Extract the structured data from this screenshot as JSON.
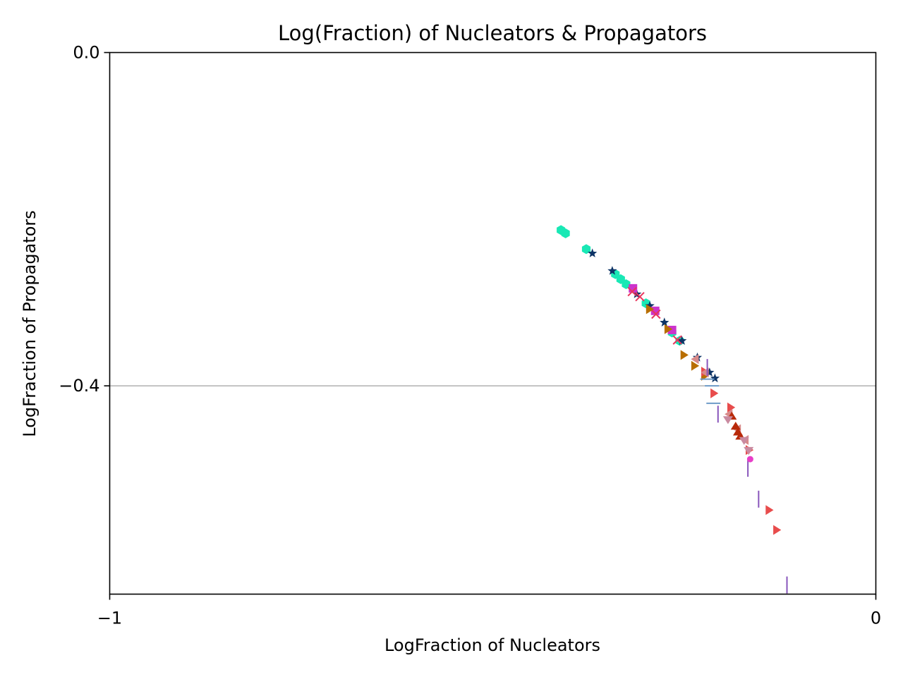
{
  "chart_data": {
    "type": "scatter",
    "title": "Log(Fraction) of Nucleators & Propagators",
    "xlabel": "LogFraction of Nucleators",
    "ylabel": "LogFraction of Propagators",
    "xlim": [
      -1,
      0
    ],
    "ylim": [
      -0.65,
      0.0
    ],
    "x_ticks": [
      {
        "value": -1,
        "label": "−1"
      },
      {
        "value": 0,
        "label": "0"
      }
    ],
    "y_ticks": [
      {
        "value": 0.0,
        "label": "0.0"
      },
      {
        "value": -0.4,
        "label": "−0.4"
      }
    ],
    "grid": {
      "horizontal_lines_at": [
        -0.4
      ],
      "color": "#b0b0b0"
    },
    "series": [
      {
        "marker": "hexagon",
        "color": "#19e8b5",
        "points": [
          [
            -0.411,
            -0.213
          ],
          [
            -0.405,
            -0.217
          ],
          [
            -0.378,
            -0.236
          ],
          [
            -0.34,
            -0.266
          ],
          [
            -0.333,
            -0.272
          ],
          [
            -0.326,
            -0.278
          ],
          [
            -0.3,
            -0.301
          ],
          [
            -0.266,
            -0.336
          ],
          [
            -0.256,
            -0.346
          ]
        ]
      },
      {
        "marker": "star",
        "color": "#0d3466",
        "points": [
          [
            -0.37,
            -0.241
          ],
          [
            -0.344,
            -0.262
          ],
          [
            -0.312,
            -0.29
          ],
          [
            -0.295,
            -0.304
          ],
          [
            -0.276,
            -0.324
          ],
          [
            -0.253,
            -0.346
          ],
          [
            -0.233,
            -0.366
          ],
          [
            -0.217,
            -0.384
          ],
          [
            -0.21,
            -0.391
          ]
        ]
      },
      {
        "marker": "square",
        "color": "#cc33cc",
        "points": [
          [
            -0.317,
            -0.283
          ],
          [
            -0.288,
            -0.31
          ],
          [
            -0.266,
            -0.333
          ]
        ]
      },
      {
        "marker": "x",
        "color": "#e8355c",
        "points": [
          [
            -0.318,
            -0.287
          ],
          [
            -0.308,
            -0.293
          ],
          [
            -0.287,
            -0.314
          ],
          [
            -0.259,
            -0.345
          ]
        ]
      },
      {
        "marker": "triangle-right",
        "color": "#b86e00",
        "points": [
          [
            -0.296,
            -0.308
          ],
          [
            -0.272,
            -0.332
          ],
          [
            -0.251,
            -0.363
          ],
          [
            -0.237,
            -0.376
          ],
          [
            -0.224,
            -0.388
          ]
        ]
      },
      {
        "marker": "triangle-right",
        "color": "#e84c4c",
        "points": [
          [
            -0.224,
            -0.383
          ],
          [
            -0.212,
            -0.409
          ],
          [
            -0.19,
            -0.426
          ],
          [
            -0.166,
            -0.477
          ],
          [
            -0.14,
            -0.549
          ],
          [
            -0.13,
            -0.573
          ]
        ]
      },
      {
        "marker": "triangle-left",
        "color": "#d88a8a",
        "points": [
          [
            -0.235,
            -0.368
          ],
          [
            -0.222,
            -0.384
          ],
          [
            -0.191,
            -0.434
          ],
          [
            -0.18,
            -0.452
          ],
          [
            -0.17,
            -0.465
          ]
        ]
      },
      {
        "marker": "triangle-up",
        "color": "#b82a0a",
        "points": [
          [
            -0.188,
            -0.437
          ],
          [
            -0.183,
            -0.449
          ],
          [
            -0.18,
            -0.456
          ],
          [
            -0.177,
            -0.461
          ]
        ]
      },
      {
        "marker": "triangle-down",
        "color": "#c98aa0",
        "points": [
          [
            -0.193,
            -0.44
          ],
          [
            -0.172,
            -0.465
          ],
          [
            -0.166,
            -0.477
          ]
        ]
      },
      {
        "marker": "tick-h",
        "color": "#6e9bc8",
        "points": [
          [
            -0.22,
            -0.392
          ],
          [
            -0.214,
            -0.4
          ],
          [
            -0.212,
            -0.421
          ]
        ]
      },
      {
        "marker": "tick-v",
        "color": "#8855bb",
        "points": [
          [
            -0.22,
            -0.378
          ],
          [
            -0.206,
            -0.434
          ],
          [
            -0.167,
            -0.499
          ],
          [
            -0.153,
            -0.536
          ],
          [
            -0.116,
            -0.639
          ]
        ]
      },
      {
        "marker": "circle",
        "color": "#e83ec8",
        "points": [
          [
            -0.164,
            -0.488
          ]
        ]
      }
    ]
  }
}
